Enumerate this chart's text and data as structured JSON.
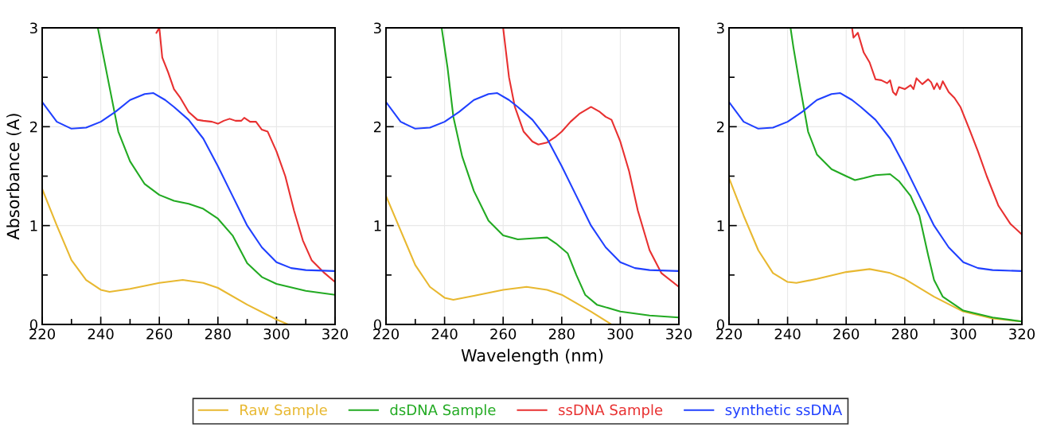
{
  "chart_data": [
    {
      "type": "line",
      "ylabel": "Absorbance (A)",
      "xlim": [
        220,
        320
      ],
      "ylim": [
        0,
        3
      ],
      "xticks": [
        220,
        240,
        260,
        280,
        300,
        320
      ],
      "yticks": [
        0,
        1,
        2,
        3
      ],
      "grid": true,
      "legend": "bottom",
      "line_style": "solid",
      "marker": "none",
      "series": [
        {
          "name": "Raw Sample",
          "color": "#e8b830",
          "x": [
            220,
            225,
            230,
            235,
            240,
            243,
            250,
            260,
            268,
            275,
            280,
            290,
            300,
            304
          ],
          "values": [
            1.37,
            1.0,
            0.65,
            0.45,
            0.35,
            0.33,
            0.36,
            0.42,
            0.45,
            0.42,
            0.37,
            0.2,
            0.05,
            0
          ]
        },
        {
          "name": "dsDNA Sample",
          "color": "#22aa22",
          "x": [
            239,
            240,
            243,
            246,
            250,
            255,
            260,
            265,
            270,
            275,
            280,
            285,
            290,
            295,
            300,
            310,
            320
          ],
          "values": [
            3.0,
            2.85,
            2.4,
            1.95,
            1.65,
            1.42,
            1.31,
            1.25,
            1.22,
            1.17,
            1.07,
            0.9,
            0.62,
            0.48,
            0.41,
            0.34,
            0.3
          ]
        },
        {
          "name": "ssDNA Sample",
          "color": "#e83030",
          "x": [
            259,
            260,
            261,
            263,
            265,
            267,
            270,
            273,
            275,
            278,
            280,
            282,
            284,
            286,
            288,
            289,
            291,
            293,
            295,
            297,
            300,
            303,
            306,
            309,
            312,
            316,
            320
          ],
          "values": [
            2.95,
            3.0,
            2.7,
            2.55,
            2.38,
            2.3,
            2.15,
            2.07,
            2.06,
            2.05,
            2.03,
            2.06,
            2.08,
            2.06,
            2.06,
            2.09,
            2.05,
            2.05,
            1.97,
            1.95,
            1.75,
            1.5,
            1.15,
            0.85,
            0.65,
            0.53,
            0.43
          ]
        },
        {
          "name": "synthetic ssDNA",
          "color": "#2040ff",
          "x": [
            220,
            225,
            230,
            235,
            240,
            245,
            250,
            255,
            258,
            262,
            265,
            270,
            275,
            280,
            285,
            290,
            295,
            300,
            305,
            310,
            320
          ],
          "values": [
            2.25,
            2.05,
            1.98,
            1.99,
            2.05,
            2.15,
            2.27,
            2.33,
            2.34,
            2.27,
            2.2,
            2.07,
            1.88,
            1.6,
            1.3,
            1.0,
            0.78,
            0.63,
            0.57,
            0.55,
            0.54
          ]
        }
      ]
    },
    {
      "type": "line",
      "xlabel": "Wavelength (nm)",
      "xlim": [
        220,
        320
      ],
      "ylim": [
        0,
        3
      ],
      "xticks": [
        220,
        240,
        260,
        280,
        300,
        320
      ],
      "yticks": [
        0,
        1,
        2,
        3
      ],
      "grid": true,
      "legend": "bottom",
      "line_style": "solid",
      "marker": "none",
      "series": [
        {
          "name": "Raw Sample",
          "color": "#e8b830",
          "x": [
            220,
            225,
            230,
            235,
            240,
            243,
            250,
            260,
            268,
            275,
            280,
            290,
            297
          ],
          "values": [
            1.3,
            0.95,
            0.6,
            0.38,
            0.27,
            0.25,
            0.29,
            0.35,
            0.38,
            0.35,
            0.3,
            0.13,
            0
          ]
        },
        {
          "name": "dsDNA Sample",
          "color": "#22aa22",
          "x": [
            239,
            241,
            243,
            246,
            250,
            255,
            260,
            265,
            270,
            275,
            278,
            282,
            285,
            288,
            292,
            300,
            310,
            320
          ],
          "values": [
            3.0,
            2.6,
            2.1,
            1.7,
            1.35,
            1.05,
            0.9,
            0.86,
            0.87,
            0.88,
            0.82,
            0.72,
            0.5,
            0.3,
            0.2,
            0.13,
            0.09,
            0.07
          ]
        },
        {
          "name": "ssDNA Sample",
          "color": "#e83030",
          "x": [
            260,
            262,
            264,
            267,
            270,
            272,
            275,
            278,
            280,
            283,
            286,
            290,
            293,
            295,
            297,
            300,
            303,
            306,
            310,
            314,
            320
          ],
          "values": [
            3.0,
            2.5,
            2.2,
            1.95,
            1.85,
            1.82,
            1.84,
            1.9,
            1.95,
            2.05,
            2.13,
            2.2,
            2.15,
            2.1,
            2.07,
            1.85,
            1.55,
            1.15,
            0.75,
            0.52,
            0.38
          ]
        },
        {
          "name": "synthetic ssDNA",
          "color": "#2040ff",
          "x": [
            220,
            225,
            230,
            235,
            240,
            245,
            250,
            255,
            258,
            262,
            265,
            270,
            275,
            280,
            285,
            290,
            295,
            300,
            305,
            310,
            320
          ],
          "values": [
            2.25,
            2.05,
            1.98,
            1.99,
            2.05,
            2.15,
            2.27,
            2.33,
            2.34,
            2.27,
            2.2,
            2.07,
            1.88,
            1.6,
            1.3,
            1.0,
            0.78,
            0.63,
            0.57,
            0.55,
            0.54
          ]
        }
      ]
    },
    {
      "type": "line",
      "xlim": [
        220,
        320
      ],
      "ylim": [
        0,
        3
      ],
      "xticks": [
        220,
        240,
        260,
        280,
        300,
        320
      ],
      "yticks": [
        0,
        1,
        2,
        3
      ],
      "grid": true,
      "legend": "bottom",
      "line_style": "solid",
      "marker": "none",
      "series": [
        {
          "name": "Raw Sample",
          "color": "#e8b830",
          "x": [
            220,
            225,
            230,
            235,
            240,
            243,
            250,
            260,
            268,
            275,
            280,
            290,
            300,
            310,
            320
          ],
          "values": [
            1.48,
            1.1,
            0.75,
            0.52,
            0.43,
            0.42,
            0.46,
            0.53,
            0.56,
            0.52,
            0.46,
            0.28,
            0.13,
            0.06,
            0.03
          ]
        },
        {
          "name": "dsDNA Sample",
          "color": "#22aa22",
          "x": [
            241,
            242,
            244,
            247,
            250,
            255,
            260,
            263,
            266,
            270,
            275,
            278,
            282,
            285,
            288,
            290,
            293,
            300,
            310,
            320
          ],
          "values": [
            3.0,
            2.8,
            2.45,
            1.95,
            1.72,
            1.57,
            1.5,
            1.46,
            1.48,
            1.51,
            1.52,
            1.45,
            1.3,
            1.1,
            0.7,
            0.45,
            0.28,
            0.14,
            0.07,
            0.03
          ]
        },
        {
          "name": "ssDNA Sample",
          "color": "#e83030",
          "x": [
            262,
            262.5,
            264,
            266,
            268,
            270,
            272,
            274,
            275,
            276,
            277,
            278,
            280,
            282,
            283,
            284,
            286,
            288,
            289,
            290,
            291,
            292,
            293,
            295,
            297,
            299,
            302,
            305,
            308,
            312,
            316,
            320
          ],
          "values": [
            3.0,
            2.9,
            2.95,
            2.75,
            2.65,
            2.48,
            2.47,
            2.44,
            2.47,
            2.35,
            2.32,
            2.4,
            2.38,
            2.42,
            2.38,
            2.49,
            2.43,
            2.48,
            2.45,
            2.38,
            2.44,
            2.38,
            2.46,
            2.35,
            2.29,
            2.2,
            1.98,
            1.75,
            1.5,
            1.2,
            1.02,
            0.91
          ]
        },
        {
          "name": "synthetic ssDNA",
          "color": "#2040ff",
          "x": [
            220,
            225,
            230,
            235,
            240,
            245,
            250,
            255,
            258,
            262,
            265,
            270,
            275,
            280,
            285,
            290,
            295,
            300,
            305,
            310,
            320
          ],
          "values": [
            2.25,
            2.05,
            1.98,
            1.99,
            2.05,
            2.15,
            2.27,
            2.33,
            2.34,
            2.27,
            2.2,
            2.07,
            1.88,
            1.6,
            1.3,
            1.0,
            0.78,
            0.63,
            0.57,
            0.55,
            0.54
          ]
        }
      ]
    }
  ]
}
